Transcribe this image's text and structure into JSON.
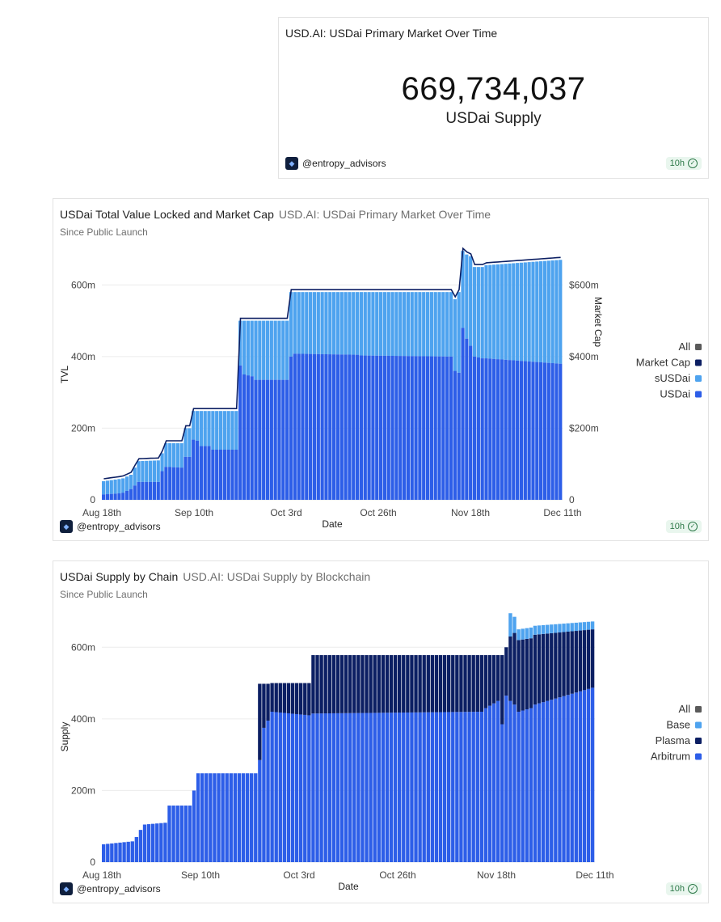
{
  "counter": {
    "title": "USD.AI: USDai Primary Market Over Time",
    "value": "669,734,037",
    "label": "USDai Supply",
    "author": "@entropy_advisors",
    "badge": "10h"
  },
  "tvl_card": {
    "title": "USDai Total Value Locked and Market Cap",
    "subtitle_source": "USD.AI: USDai Primary Market Over Time",
    "since": "Since Public Launch",
    "author": "@entropy_advisors",
    "badge": "10h"
  },
  "chain_card": {
    "title": "USDai Supply by Chain",
    "subtitle_source": "USD.AI: USDai Supply by Blockchain",
    "since": "Since Public Launch",
    "author": "@entropy_advisors",
    "badge": "10h"
  },
  "colors": {
    "dark": "#0c1f63",
    "mid": "#2d5ee8",
    "light": "#4ea3ef",
    "all": "#5a5a5a"
  },
  "chart_data": [
    {
      "type": "bar",
      "title": "USDai Total Value Locked and Market Cap",
      "xlabel": "Date",
      "ylabel": "TVL",
      "ylabel_right": "Market Cap",
      "ylim": [
        0,
        700
      ],
      "yticks": [
        "0",
        "200m",
        "400m",
        "600m"
      ],
      "yticks_right": [
        "0",
        "$200m",
        "$400m",
        "$600m"
      ],
      "xticks": [
        "Aug 18th",
        "Sep 10th",
        "Oct 3rd",
        "Oct 26th",
        "Nov 18th",
        "Dec 11th"
      ],
      "legend": [
        "All",
        "Market Cap",
        "sUSDai",
        "USDai"
      ],
      "units": "millions USD",
      "segments": [
        {
          "len": 5,
          "total": [
            52,
            58
          ],
          "usdai": [
            15,
            18
          ]
        },
        {
          "len": 3,
          "total": [
            60,
            70
          ],
          "usdai": [
            20,
            30
          ]
        },
        {
          "len": 1,
          "total": [
            90,
            90
          ],
          "usdai": [
            40,
            40
          ]
        },
        {
          "len": 6,
          "total": [
            108,
            110
          ],
          "usdai": [
            50,
            50
          ]
        },
        {
          "len": 1,
          "total": [
            130,
            130
          ],
          "usdai": [
            80,
            80
          ]
        },
        {
          "len": 5,
          "total": [
            158,
            158
          ],
          "usdai": [
            92,
            90
          ]
        },
        {
          "len": 2,
          "total": [
            200,
            200
          ],
          "usdai": [
            120,
            120
          ]
        },
        {
          "len": 2,
          "total": [
            248,
            248
          ],
          "usdai": [
            168,
            165
          ]
        },
        {
          "len": 3,
          "total": [
            248,
            248
          ],
          "usdai": [
            150,
            150
          ]
        },
        {
          "len": 7,
          "total": [
            248,
            248
          ],
          "usdai": [
            140,
            140
          ]
        },
        {
          "len": 1,
          "total": [
            500,
            500
          ],
          "usdai": [
            375,
            375
          ]
        },
        {
          "len": 3,
          "total": [
            500,
            500
          ],
          "usdai": [
            350,
            345
          ]
        },
        {
          "len": 9,
          "total": [
            500,
            500
          ],
          "usdai": [
            335,
            335
          ]
        },
        {
          "len": 1,
          "total": [
            580,
            580
          ],
          "usdai": [
            400,
            400
          ]
        },
        {
          "len": 17,
          "total": [
            580,
            580
          ],
          "usdai": [
            408,
            405
          ]
        },
        {
          "len": 24,
          "total": [
            580,
            580
          ],
          "usdai": [
            403,
            400
          ]
        },
        {
          "len": 1,
          "total": [
            560,
            560
          ],
          "usdai": [
            360,
            360
          ]
        },
        {
          "len": 1,
          "total": [
            580,
            580
          ],
          "usdai": [
            355,
            355
          ]
        },
        {
          "len": 1,
          "total": [
            695,
            695
          ],
          "usdai": [
            480,
            480
          ]
        },
        {
          "len": 2,
          "total": [
            685,
            680
          ],
          "usdai": [
            450,
            430
          ]
        },
        {
          "len": 3,
          "total": [
            650,
            650
          ],
          "usdai": [
            400,
            395
          ]
        },
        {
          "len": 20,
          "total": [
            655,
            670
          ],
          "usdai": [
            395,
            380
          ]
        }
      ]
    },
    {
      "type": "bar",
      "title": "USDai Supply by Chain",
      "xlabel": "Date",
      "ylabel": "Supply",
      "ylim": [
        0,
        700
      ],
      "yticks": [
        "0",
        "200m",
        "400m",
        "600m"
      ],
      "xticks": [
        "Aug 18th",
        "Sep 10th",
        "Oct 3rd",
        "Oct 26th",
        "Nov 18th",
        "Dec 11th"
      ],
      "legend": [
        "All",
        "Base",
        "Plasma",
        "Arbitrum"
      ],
      "units": "millions USD",
      "segments": [
        {
          "len": 8,
          "total": [
            50,
            58
          ],
          "arb": [
            50,
            58
          ],
          "plasma": [
            0,
            0
          ],
          "base": [
            0,
            0
          ]
        },
        {
          "len": 2,
          "total": [
            70,
            90
          ],
          "arb": [
            70,
            90
          ],
          "plasma": [
            0,
            0
          ],
          "base": [
            0,
            0
          ]
        },
        {
          "len": 6,
          "total": [
            105,
            110
          ],
          "arb": [
            105,
            110
          ],
          "plasma": [
            0,
            0
          ],
          "base": [
            0,
            0
          ]
        },
        {
          "len": 6,
          "total": [
            158,
            158
          ],
          "arb": [
            158,
            158
          ],
          "plasma": [
            0,
            0
          ],
          "base": [
            0,
            0
          ]
        },
        {
          "len": 1,
          "total": [
            200,
            200
          ],
          "arb": [
            200,
            200
          ],
          "plasma": [
            0,
            0
          ],
          "base": [
            0,
            0
          ]
        },
        {
          "len": 15,
          "total": [
            248,
            248
          ],
          "arb": [
            248,
            248
          ],
          "plasma": [
            0,
            0
          ],
          "base": [
            0,
            0
          ]
        },
        {
          "len": 1,
          "total": [
            498,
            498
          ],
          "arb": [
            285,
            285
          ],
          "plasma": [
            213,
            213
          ],
          "base": [
            0,
            0
          ]
        },
        {
          "len": 2,
          "total": [
            498,
            498
          ],
          "arb": [
            375,
            395
          ],
          "plasma": [
            123,
            103
          ],
          "base": [
            0,
            0
          ]
        },
        {
          "len": 10,
          "total": [
            500,
            500
          ],
          "arb": [
            420,
            410
          ],
          "plasma": [
            80,
            90
          ],
          "base": [
            0,
            0
          ]
        },
        {
          "len": 42,
          "total": [
            578,
            578
          ],
          "arb": [
            415,
            420
          ],
          "plasma": [
            163,
            158
          ],
          "base": [
            0,
            0
          ]
        },
        {
          "len": 4,
          "total": [
            578,
            578
          ],
          "arb": [
            430,
            450
          ],
          "plasma": [
            148,
            128
          ],
          "base": [
            0,
            0
          ]
        },
        {
          "len": 1,
          "total": [
            578,
            578
          ],
          "arb": [
            385,
            385
          ],
          "plasma": [
            193,
            193
          ],
          "base": [
            0,
            0
          ]
        },
        {
          "len": 1,
          "total": [
            600,
            600
          ],
          "arb": [
            465,
            465
          ],
          "plasma": [
            135,
            135
          ],
          "base": [
            0,
            0
          ]
        },
        {
          "len": 2,
          "total": [
            695,
            685
          ],
          "arb": [
            450,
            440
          ],
          "plasma": [
            180,
            200
          ],
          "base": [
            65,
            45
          ]
        },
        {
          "len": 4,
          "total": [
            650,
            655
          ],
          "arb": [
            420,
            430
          ],
          "plasma": [
            200,
            195
          ],
          "base": [
            30,
            30
          ]
        },
        {
          "len": 15,
          "total": [
            660,
            672
          ],
          "arb": [
            440,
            487
          ],
          "plasma": [
            195,
            163
          ],
          "base": [
            25,
            22
          ]
        }
      ]
    }
  ]
}
